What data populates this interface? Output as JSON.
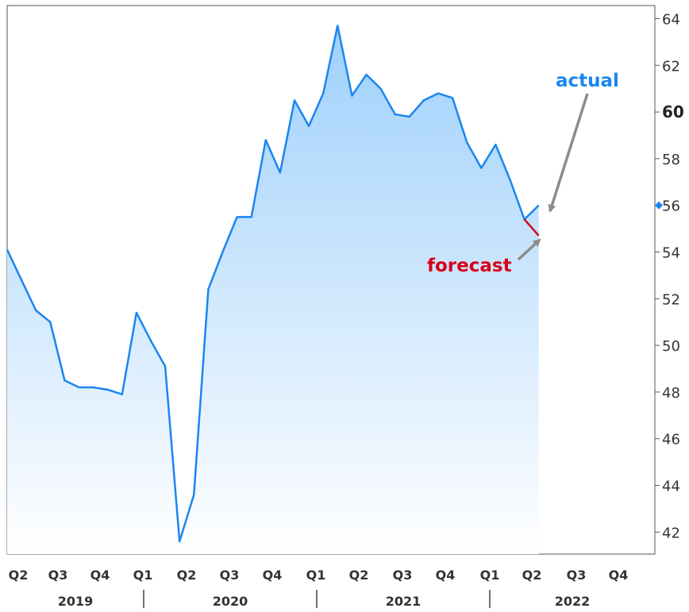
{
  "chart_data": {
    "type": "line",
    "title": "",
    "xlabel": "",
    "ylabel": "",
    "ylim": [
      41,
      64.6
    ],
    "yticks": [
      42,
      44,
      46,
      48,
      50,
      52,
      54,
      56,
      58,
      60,
      62,
      64
    ],
    "ytick_bold": 60,
    "highlight_value": 56,
    "x_quarters": [
      "Q2",
      "Q3",
      "Q4",
      "Q1",
      "Q2",
      "Q3",
      "Q4",
      "Q1",
      "Q2",
      "Q3",
      "Q4",
      "Q1",
      "Q2",
      "Q3",
      "Q4"
    ],
    "years": [
      "2019",
      "2020",
      "2021",
      "2022"
    ],
    "series": [
      {
        "name": "actual",
        "color": "#1a86f0",
        "x": [
          "2019-04",
          "2019-05",
          "2019-06",
          "2019-07",
          "2019-08",
          "2019-09",
          "2019-10",
          "2019-11",
          "2019-12",
          "2020-01",
          "2020-02",
          "2020-03",
          "2020-04",
          "2020-05",
          "2020-06",
          "2020-07",
          "2020-08",
          "2020-09",
          "2020-10",
          "2020-11",
          "2020-12",
          "2021-01",
          "2021-02",
          "2021-03",
          "2021-04",
          "2021-05",
          "2021-06",
          "2021-07",
          "2021-08",
          "2021-09",
          "2021-10",
          "2021-11",
          "2021-12",
          "2022-01",
          "2022-02",
          "2022-03",
          "2022-04",
          "2022-05"
        ],
        "values": [
          54.1,
          52.8,
          51.5,
          51.0,
          48.5,
          48.2,
          48.2,
          48.1,
          47.9,
          51.4,
          50.2,
          49.1,
          41.6,
          43.6,
          52.4,
          54.0,
          55.5,
          55.5,
          58.8,
          57.4,
          60.5,
          59.4,
          60.8,
          63.7,
          60.7,
          61.6,
          61.0,
          59.9,
          59.8,
          60.5,
          60.8,
          60.6,
          58.7,
          57.6,
          58.6,
          57.1,
          55.4,
          56.0
        ]
      },
      {
        "name": "forecast",
        "color": "#d8001a",
        "x": [
          "2022-04",
          "2022-05"
        ],
        "values": [
          55.4,
          54.7
        ]
      }
    ],
    "annotations": {
      "actual_label": "actual",
      "forecast_label": "forecast"
    },
    "grid": false,
    "legend": "none"
  }
}
